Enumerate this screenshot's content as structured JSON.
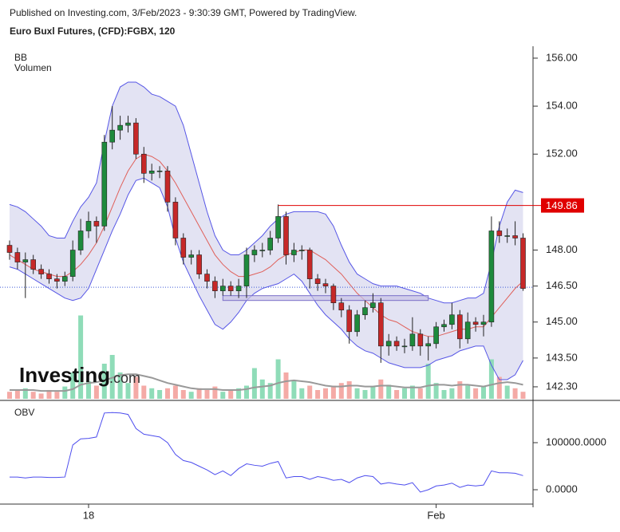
{
  "header": {
    "published": "Published on Investing.com, 3/Feb/2023 - 9:30:39 GMT, Powered by TradingView.",
    "instrument": "Euro Buxl Futures, (CFD):FGBX, 120"
  },
  "watermark": {
    "brand": "Investing",
    "suffix": ".com"
  },
  "chart_data": [
    {
      "type": "candlestick",
      "indicator_label": "BB",
      "volume_label": "Volumen",
      "ohlc": [
        [
          148.2,
          148.4,
          147.6,
          147.9
        ],
        [
          147.9,
          148.1,
          147.2,
          147.5
        ],
        [
          147.5,
          147.9,
          146.0,
          147.6
        ],
        [
          147.6,
          147.8,
          147.0,
          147.2
        ],
        [
          147.2,
          147.4,
          146.8,
          147.0
        ],
        [
          147.0,
          147.2,
          146.6,
          146.8
        ],
        [
          146.8,
          147.0,
          146.4,
          146.7
        ],
        [
          146.7,
          147.1,
          146.5,
          146.9
        ],
        [
          146.9,
          148.4,
          146.7,
          148.0
        ],
        [
          148.0,
          149.3,
          147.8,
          148.8
        ],
        [
          148.8,
          149.6,
          148.5,
          149.2
        ],
        [
          149.2,
          149.4,
          148.3,
          149.0
        ],
        [
          149.0,
          152.8,
          148.8,
          152.5
        ],
        [
          152.5,
          154.0,
          152.2,
          153.0
        ],
        [
          153.0,
          153.6,
          152.6,
          153.2
        ],
        [
          153.2,
          153.6,
          152.9,
          153.3
        ],
        [
          153.3,
          153.5,
          151.8,
          152.0
        ],
        [
          152.0,
          152.3,
          150.8,
          151.2
        ],
        [
          151.2,
          151.6,
          150.9,
          151.3
        ],
        [
          151.3,
          151.5,
          151.0,
          151.3
        ],
        [
          151.3,
          151.5,
          149.6,
          150.0
        ],
        [
          150.0,
          150.2,
          148.2,
          148.5
        ],
        [
          148.5,
          148.7,
          147.4,
          147.7
        ],
        [
          147.7,
          148.0,
          147.4,
          147.8
        ],
        [
          147.8,
          148.0,
          146.8,
          147.0
        ],
        [
          147.0,
          147.2,
          146.4,
          146.7
        ],
        [
          146.7,
          146.9,
          146.0,
          146.3
        ],
        [
          146.3,
          146.8,
          146.1,
          146.5
        ],
        [
          146.5,
          146.7,
          146.1,
          146.3
        ],
        [
          146.3,
          146.8,
          146.0,
          146.5
        ],
        [
          146.5,
          148.1,
          146.0,
          147.8
        ],
        [
          147.8,
          148.2,
          147.5,
          148.0
        ],
        [
          148.0,
          148.3,
          147.7,
          148.0
        ],
        [
          148.0,
          148.8,
          147.8,
          148.5
        ],
        [
          148.5,
          149.9,
          148.3,
          149.4
        ],
        [
          149.4,
          149.6,
          147.4,
          147.8
        ],
        [
          147.8,
          148.3,
          147.5,
          148.0
        ],
        [
          148.0,
          148.2,
          147.6,
          148.0
        ],
        [
          148.0,
          148.1,
          146.4,
          146.8
        ],
        [
          146.8,
          147.0,
          146.3,
          146.6
        ],
        [
          146.6,
          146.8,
          146.2,
          146.5
        ],
        [
          146.5,
          146.6,
          145.5,
          145.8
        ],
        [
          145.8,
          146.0,
          145.2,
          145.5
        ],
        [
          145.5,
          145.7,
          144.1,
          144.6
        ],
        [
          144.6,
          145.5,
          144.4,
          145.3
        ],
        [
          145.3,
          145.9,
          145.1,
          145.6
        ],
        [
          145.6,
          146.2,
          145.4,
          145.8
        ],
        [
          145.8,
          146.0,
          143.3,
          144.0
        ],
        [
          144.0,
          144.5,
          143.6,
          144.2
        ],
        [
          144.2,
          144.4,
          143.8,
          144.0
        ],
        [
          144.0,
          144.3,
          143.7,
          144.0
        ],
        [
          144.0,
          145.2,
          143.8,
          144.5
        ],
        [
          144.5,
          144.7,
          143.6,
          144.0
        ],
        [
          144.0,
          144.4,
          143.4,
          144.1
        ],
        [
          144.1,
          145.0,
          143.9,
          144.8
        ],
        [
          144.8,
          145.1,
          144.6,
          144.9
        ],
        [
          144.9,
          145.8,
          144.7,
          145.3
        ],
        [
          145.3,
          145.5,
          143.9,
          144.3
        ],
        [
          144.3,
          145.4,
          144.1,
          145.0
        ],
        [
          145.0,
          145.2,
          144.6,
          144.9
        ],
        [
          144.9,
          145.3,
          144.4,
          145.0
        ],
        [
          145.0,
          149.4,
          144.8,
          148.8
        ],
        [
          148.8,
          149.2,
          148.3,
          148.6
        ],
        [
          148.6,
          148.9,
          148.3,
          148.6
        ],
        [
          148.6,
          149.2,
          148.2,
          148.5
        ],
        [
          148.5,
          148.7,
          146.3,
          146.4
        ]
      ],
      "bb_upper": [
        149.9,
        149.8,
        149.6,
        149.3,
        149.0,
        148.6,
        148.5,
        148.5,
        149.2,
        149.8,
        150.2,
        150.8,
        152.5,
        154.0,
        154.8,
        155.0,
        155.0,
        154.8,
        154.5,
        154.4,
        154.2,
        154.0,
        153.2,
        152.0,
        150.8,
        149.6,
        148.6,
        148.0,
        147.8,
        147.8,
        148.0,
        148.3,
        148.6,
        149.0,
        149.3,
        149.5,
        149.6,
        149.6,
        149.6,
        149.6,
        149.5,
        149.0,
        148.2,
        147.5,
        147.0,
        146.8,
        146.6,
        146.5,
        146.5,
        146.5,
        146.4,
        146.3,
        146.2,
        146.0,
        145.9,
        145.8,
        145.8,
        145.9,
        146.0,
        146.0,
        146.2,
        147.5,
        149.0,
        150.0,
        150.5,
        150.4
      ],
      "bb_middle": [
        147.8,
        147.6,
        147.4,
        147.2,
        147.1,
        147.0,
        146.9,
        146.9,
        147.1,
        147.4,
        147.8,
        148.3,
        149.0,
        149.8,
        150.6,
        151.3,
        151.8,
        152.0,
        151.9,
        151.7,
        151.3,
        150.8,
        150.2,
        149.6,
        149.0,
        148.4,
        147.8,
        147.4,
        147.1,
        146.9,
        146.9,
        147.0,
        147.1,
        147.3,
        147.6,
        147.8,
        147.9,
        148.0,
        148.0,
        147.8,
        147.6,
        147.3,
        147.0,
        146.6,
        146.2,
        145.9,
        145.6,
        145.3,
        145.1,
        145.0,
        144.8,
        144.6,
        144.5,
        144.4,
        144.4,
        144.5,
        144.6,
        144.7,
        144.7,
        144.8,
        144.8,
        145.2,
        145.6,
        146.0,
        146.4,
        146.7
      ],
      "bb_lower": [
        147.3,
        147.2,
        147.0,
        146.8,
        146.6,
        146.4,
        146.2,
        146.0,
        145.9,
        146.0,
        146.4,
        147.2,
        148.0,
        148.8,
        149.5,
        150.3,
        150.9,
        151.0,
        150.8,
        150.6,
        149.8,
        148.5,
        147.5,
        146.8,
        146.1,
        145.5,
        144.9,
        144.7,
        145.0,
        145.4,
        145.9,
        146.2,
        146.4,
        146.5,
        146.6,
        146.8,
        147.0,
        146.7,
        146.2,
        145.7,
        145.3,
        145.0,
        144.7,
        144.3,
        144.0,
        143.8,
        143.7,
        143.5,
        143.3,
        143.2,
        143.1,
        143.1,
        143.1,
        143.2,
        143.4,
        143.5,
        143.6,
        143.8,
        143.9,
        144.0,
        144.0,
        143.2,
        142.6,
        142.6,
        142.8,
        143.4
      ],
      "volume": [
        8,
        10,
        12,
        8,
        6,
        10,
        8,
        14,
        30,
        95,
        20,
        15,
        40,
        50,
        30,
        18,
        25,
        15,
        12,
        10,
        12,
        15,
        10,
        8,
        12,
        10,
        14,
        8,
        10,
        12,
        15,
        35,
        22,
        18,
        45,
        30,
        20,
        12,
        15,
        10,
        12,
        15,
        18,
        20,
        12,
        10,
        14,
        22,
        16,
        10,
        12,
        15,
        12,
        40,
        18,
        10,
        12,
        20,
        15,
        12,
        14,
        45,
        25,
        15,
        12,
        8
      ],
      "volume_ma": [
        10,
        10,
        10,
        10,
        9,
        9,
        9,
        9,
        11,
        16,
        18,
        19,
        21,
        24,
        27,
        28,
        28,
        26,
        24,
        21,
        18,
        16,
        14,
        12,
        11,
        11,
        11,
        10,
        10,
        10,
        11,
        13,
        14,
        15,
        18,
        20,
        21,
        20,
        19,
        17,
        15,
        14,
        14,
        15,
        15,
        14,
        14,
        15,
        15,
        14,
        13,
        13,
        13,
        15,
        16,
        16,
        15,
        16,
        16,
        15,
        14,
        16,
        18,
        19,
        18,
        16
      ],
      "vlim": [
        0,
        100
      ],
      "ylim": [
        141.8,
        156.43
      ],
      "yticks": [
        {
          "value": 156,
          "label": "156.00"
        },
        {
          "value": 154,
          "label": "154.00"
        },
        {
          "value": 152,
          "label": "152.00"
        },
        {
          "value": 148,
          "label": "148.00"
        },
        {
          "value": 146.5,
          "label": "146.50"
        },
        {
          "value": 145,
          "label": "145.00"
        },
        {
          "value": 143.5,
          "label": "143.50"
        },
        {
          "value": 142.3,
          "label": "142.30"
        }
      ],
      "xticks": [
        {
          "value": 10,
          "label": "18"
        },
        {
          "value": 54,
          "label": "Feb"
        }
      ],
      "price_line": 149.86,
      "last_price": 146.45,
      "zone": [
        145.9,
        146.1
      ],
      "colors": {
        "up": "#1e8a3c",
        "down": "#c62828",
        "volume_up": "#8fdcb8",
        "volume_down": "#f4aaa6",
        "band": "#5656e6",
        "band_fill": "#e3e3f3",
        "middle": "#e0605a",
        "price_line": "#e00000"
      }
    },
    {
      "type": "line",
      "title": "OBV",
      "values": [
        27000,
        27000,
        25000,
        27000,
        27000,
        26000,
        26000,
        27000,
        95000,
        108000,
        109000,
        112000,
        163000,
        164000,
        163000,
        160000,
        130000,
        118000,
        115000,
        112000,
        100000,
        75000,
        62000,
        58000,
        50000,
        42000,
        32000,
        40000,
        30000,
        45000,
        55000,
        52000,
        50000,
        56000,
        60000,
        25000,
        28000,
        28000,
        22000,
        28000,
        25000,
        20000,
        22000,
        15000,
        25000,
        30000,
        28000,
        12000,
        15000,
        12000,
        10000,
        15000,
        -5000,
        0,
        8000,
        10000,
        14000,
        5000,
        10000,
        8000,
        10000,
        40000,
        36000,
        36000,
        35000,
        30000
      ],
      "ylim": [
        -30500,
        184700
      ],
      "yticks": [
        {
          "value": 100000,
          "label": "100000.0000"
        },
        {
          "value": 0,
          "label": "0.0000"
        }
      ],
      "color": "#4d4dee"
    }
  ]
}
